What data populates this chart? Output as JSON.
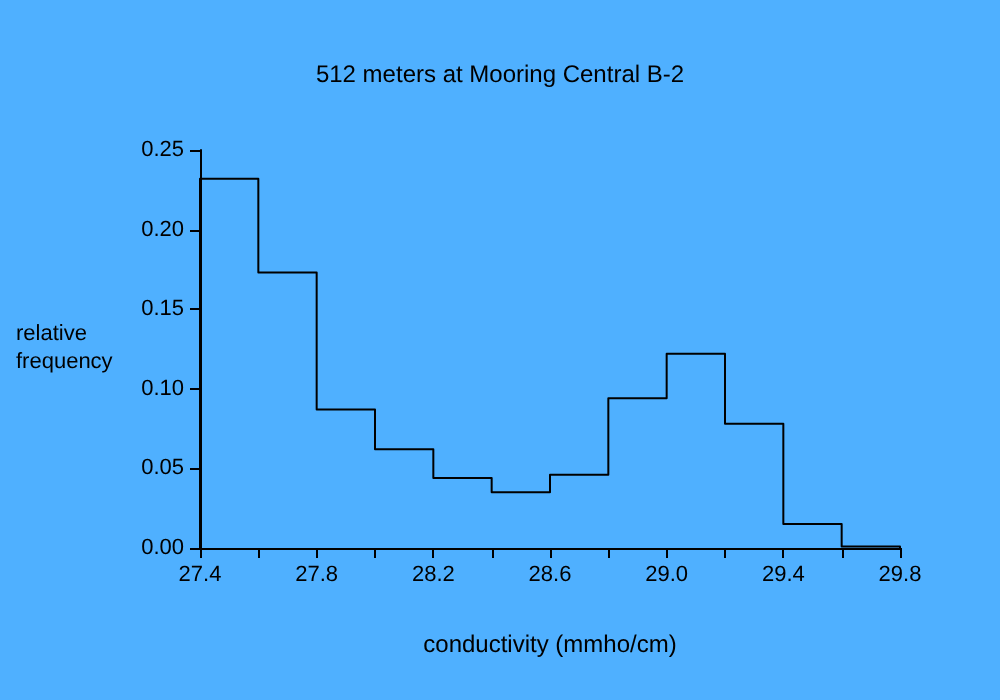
{
  "chart_data": {
    "type": "histogram",
    "title": "512 meters at Mooring Central B-2",
    "xlabel": "conductivity (mmho/cm)",
    "ylabel": "relative\nfrequency",
    "bins": [
      27.4,
      27.6,
      27.8,
      28.0,
      28.2,
      28.4,
      28.6,
      28.8,
      29.0,
      29.2,
      29.4,
      29.6,
      29.8
    ],
    "values": [
      0.232,
      0.173,
      0.087,
      0.062,
      0.044,
      0.035,
      0.046,
      0.094,
      0.122,
      0.078,
      0.015,
      0.001
    ],
    "color": "#000000",
    "xlim": [
      27.4,
      29.8
    ],
    "xticks": [
      27.4,
      {
        "value": 27.6,
        "label": null
      },
      27.8,
      {
        "value": 28.0,
        "label": null
      },
      28.2,
      {
        "value": 28.4,
        "label": null
      },
      28.6,
      {
        "value": 28.8,
        "label": null
      },
      {
        "value": 29.0,
        "label": "29.0"
      },
      {
        "value": 29.2,
        "label": null
      },
      29.4,
      {
        "value": 29.6,
        "label": null
      },
      29.8
    ],
    "ylim": [
      0,
      0.25
    ],
    "yticks": [
      {
        "value": 0,
        "label": "0.00"
      },
      {
        "value": 0.05,
        "label": "0.05"
      },
      {
        "value": 0.1,
        "label": "0.10"
      },
      {
        "value": 0.15,
        "label": "0.15"
      },
      {
        "value": 0.2,
        "label": "0.20"
      },
      {
        "value": 0.25,
        "label": "0.25"
      }
    ],
    "grid": false
  }
}
